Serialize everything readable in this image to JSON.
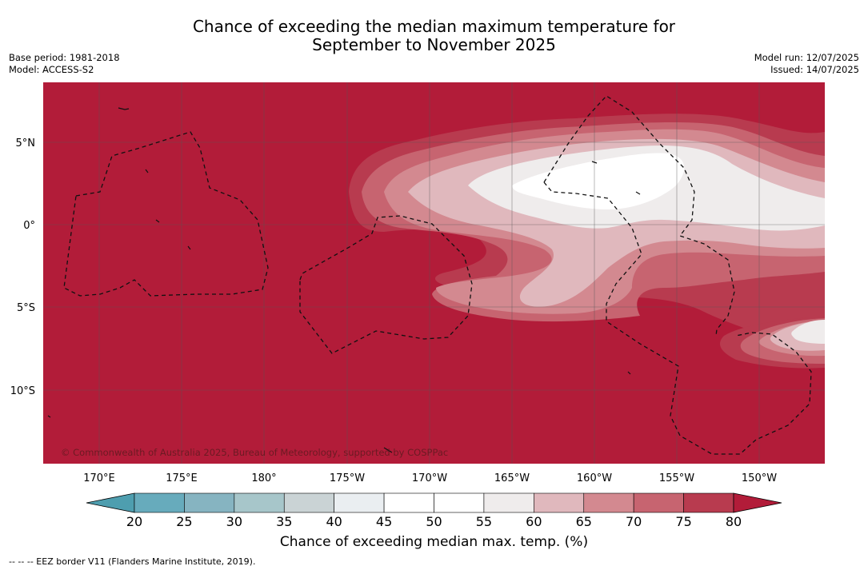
{
  "title_line1": "Chance of exceeding the median maximum temperature for",
  "title_line2": "September to November 2025",
  "meta_left": [
    "Base period: 1981-2018",
    "Model: ACCESS-S2"
  ],
  "meta_right": [
    "Model run: 12/07/2025",
    "Issued: 14/07/2025"
  ],
  "copyright": "© Commonwealth of Australia 2025, Bureau of Meteorology, supported by COSPPac",
  "lat_labels": [
    "5°N",
    "0°",
    "5°S",
    "10°S"
  ],
  "lon_labels": [
    "170°E",
    "175°E",
    "180°",
    "175°W",
    "170°W",
    "165°W",
    "160°W",
    "155°W",
    "150°W"
  ],
  "colorbar": {
    "ticks": [
      "20",
      "25",
      "30",
      "35",
      "40",
      "45",
      "50",
      "55",
      "60",
      "65",
      "70",
      "75",
      "80"
    ],
    "colors": [
      "#67abbc",
      "#86b4c1",
      "#a7c6ca",
      "#cad3d5",
      "#eaeef1",
      "#ffffff",
      "#ffffff",
      "#efecec",
      "#e0b8bd",
      "#d38990",
      "#c76470",
      "#b83b4f"
    ],
    "under_color": "#4e9eaf",
    "over_color": "#b21c39",
    "title": "Chance of exceeding median max. temp. (%)"
  },
  "map_colors": {
    "c60_65": "#e0b8bd",
    "c65_70": "#d38990",
    "c70_75": "#c76470",
    "c75_80": "#b83b4f",
    "c80": "#b21c39",
    "c55_60": "#efecec",
    "c50_55": "#ffffff"
  },
  "footnote": "--  --  -- EEZ border V11 (Flanders Marine Institute, 2019)."
}
